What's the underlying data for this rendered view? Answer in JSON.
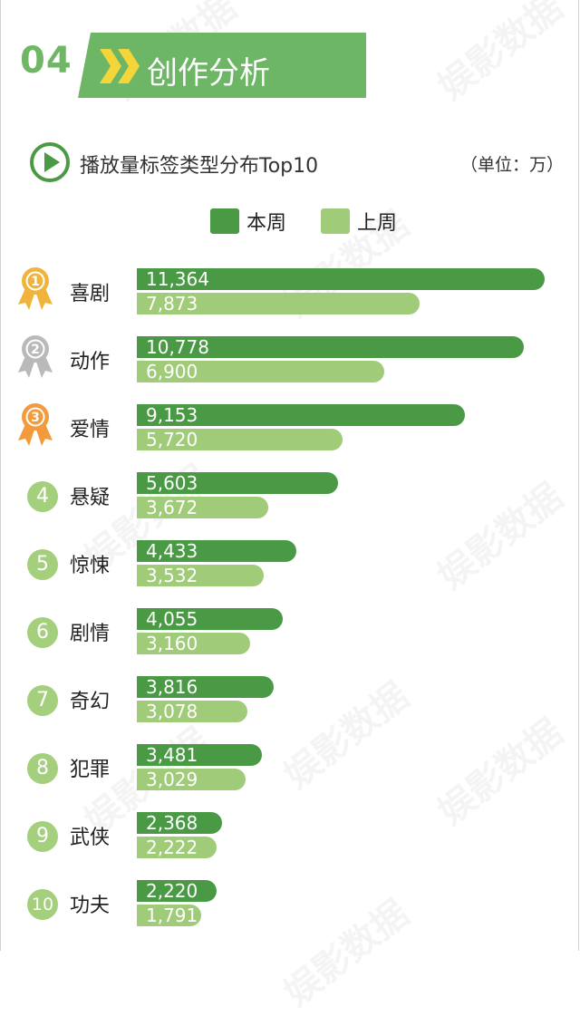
{
  "header": {
    "number": "04",
    "title": "创作分析"
  },
  "subtitle": "播放量标签类型分布Top10",
  "unit": "（单位：万）",
  "legend": {
    "current": "本周",
    "previous": "上周"
  },
  "watermark": "娱影数据",
  "colors": {
    "current": "#4a9a45",
    "previous": "#a0cb79",
    "accent": "#6cb665",
    "rank_circle": "#a4cf7c",
    "gold": "#f0b43c",
    "silver": "#b9b9b9",
    "bronze": "#f39a3c"
  },
  "chart_data": {
    "type": "bar",
    "orientation": "horizontal",
    "categories": [
      "喜剧",
      "动作",
      "爱情",
      "悬疑",
      "惊悚",
      "剧情",
      "奇幻",
      "犯罪",
      "武侠",
      "功夫"
    ],
    "ranks": [
      "1",
      "2",
      "3",
      "4",
      "5",
      "6",
      "7",
      "8",
      "9",
      "10"
    ],
    "series": [
      {
        "name": "本周",
        "values": [
          11364,
          10778,
          9153,
          5603,
          4433,
          4055,
          3816,
          3481,
          2368,
          2220
        ],
        "labels": [
          "11,364",
          "10,778",
          "9,153",
          "5,603",
          "4,433",
          "4,055",
          "3,816",
          "3,481",
          "2,368",
          "2,220"
        ]
      },
      {
        "name": "上周",
        "values": [
          7873,
          6900,
          5720,
          3672,
          3532,
          3160,
          3078,
          3029,
          2222,
          1791
        ],
        "labels": [
          "7,873",
          "6,900",
          "5,720",
          "3,672",
          "3,532",
          "3,160",
          "3,078",
          "3,029",
          "2,222",
          "1,791"
        ]
      }
    ],
    "title": "播放量标签类型分布Top10",
    "xlim": [
      0,
      11364
    ]
  }
}
